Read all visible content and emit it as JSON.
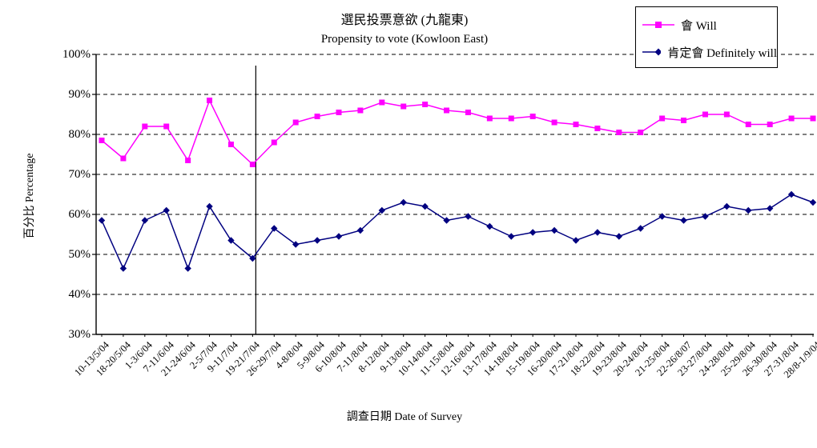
{
  "title": {
    "zh": "選民投票意欲 (九龍東)",
    "en": "Propensity to vote (Kowloon East)"
  },
  "axes": {
    "y_title": "百分比 Percentage",
    "x_title": "調查日期 Date of Survey",
    "y_ticks": [
      "100%",
      "90%",
      "80%",
      "70%",
      "60%",
      "50%",
      "40%",
      "30%"
    ]
  },
  "legend": [
    {
      "label": "會 Will",
      "color": "#FF00FF",
      "marker": "square"
    },
    {
      "label": "肯定會 Definitely will",
      "color": "#000080",
      "marker": "diamond"
    }
  ],
  "chart_data": {
    "type": "line",
    "title": "選民投票意欲 (九龍東) Propensity to vote (Kowloon East)",
    "xlabel": "調查日期 Date of Survey",
    "ylabel": "百分比 Percentage",
    "ylim": [
      30,
      100
    ],
    "y_tick_step": 10,
    "grid": "horizontal-dashed",
    "legend_position": "top-right",
    "separator_after_category": "19-21/7/04",
    "categories": [
      "10-13/5/04",
      "18-20/5/04",
      "1-3/6/04",
      "7-11/6/04",
      "21-24/6/04",
      "2-5/7/04",
      "9-11/7/04",
      "19-21/7/04",
      "26-29/7/04",
      "4-8/8/04",
      "5-9/8/04",
      "6-10/8/04",
      "7-11/8/04",
      "8-12/8/04",
      "9-13/8/04",
      "10-14/8/04",
      "11-15/8/04",
      "12-16/8/04",
      "13-17/8/04",
      "14-18/8/04",
      "15-19/8/04",
      "16-20/8/04",
      "17-21/8/04",
      "18-22/8/04",
      "19-23/8/04",
      "20-24/8/04",
      "21-25/8/04",
      "22-26/8/07",
      "23-27/8/04",
      "24-28/8/04",
      "25-29/8/04",
      "26-30/8/04",
      "27-31/8/04",
      "28/8-1/9/04"
    ],
    "series": [
      {
        "name": "會 Will",
        "color": "#FF00FF",
        "marker": "square",
        "values": [
          78.5,
          74,
          82,
          82,
          73.5,
          88.5,
          77.5,
          72.5,
          78,
          83,
          84.5,
          85.5,
          86,
          88,
          87,
          87.5,
          86,
          85.5,
          84,
          84,
          84.5,
          83,
          82.5,
          81.5,
          80.5,
          80.5,
          84,
          83.5,
          85,
          85,
          82.5,
          82.5,
          84,
          84
        ]
      },
      {
        "name": "肯定會 Definitely will",
        "color": "#000080",
        "marker": "diamond",
        "values": [
          58.5,
          46.5,
          58.5,
          61,
          46.5,
          62,
          53.5,
          49,
          56.5,
          52.5,
          53.5,
          54.5,
          56,
          61,
          63,
          62,
          58.5,
          59.5,
          57,
          54.5,
          55.5,
          56,
          53.5,
          55.5,
          54.5,
          56.5,
          59.5,
          58.5,
          59.5,
          62,
          61,
          61.5,
          65,
          63
        ]
      }
    ]
  }
}
